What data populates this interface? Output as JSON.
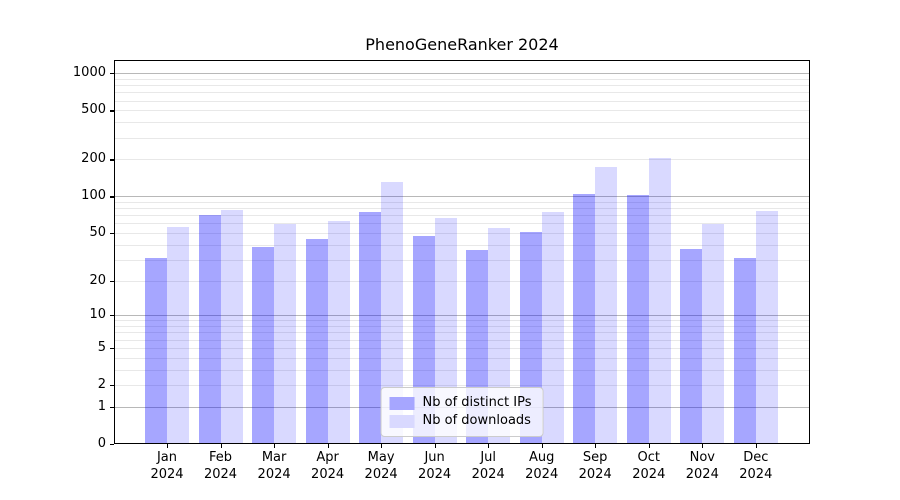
{
  "title": "PhenoGeneRanker 2024",
  "chart_data": {
    "type": "bar",
    "categories": [
      "Jan 2024",
      "Feb 2024",
      "Mar 2024",
      "Apr 2024",
      "May 2024",
      "Jun 2024",
      "Jul 2024",
      "Aug 2024",
      "Sep 2024",
      "Oct 2024",
      "Nov 2024",
      "Dec 2024"
    ],
    "series": [
      {
        "key": "distinct-ips",
        "name": "Nb of distinct IPs",
        "color": "#a6a6ff",
        "rgba": "rgba(0,0,255,0.35)",
        "values": [
          31,
          70,
          38,
          45,
          75,
          47,
          36,
          51,
          105,
          103,
          37,
          31
        ]
      },
      {
        "key": "downloads",
        "name": "Nb of downloads",
        "color": "#d9d9ff",
        "rgba": "rgba(0,0,255,0.15)",
        "values": [
          56,
          78,
          59,
          63,
          130,
          67,
          55,
          75,
          175,
          205,
          59,
          76
        ]
      }
    ],
    "yscale": "log1p",
    "ylim": [
      0,
      1280
    ],
    "yticks": [
      0,
      1,
      2,
      5,
      10,
      20,
      50,
      100,
      200,
      500,
      1000
    ],
    "major_gridlines": [
      1,
      10,
      100,
      1000
    ],
    "grid": true,
    "legend_position": "lower center"
  },
  "colors": {
    "major_grid": "#b8b8b8",
    "minor_grid": "#e8e8e8",
    "frame": "#000000",
    "background": "#ffffff"
  }
}
